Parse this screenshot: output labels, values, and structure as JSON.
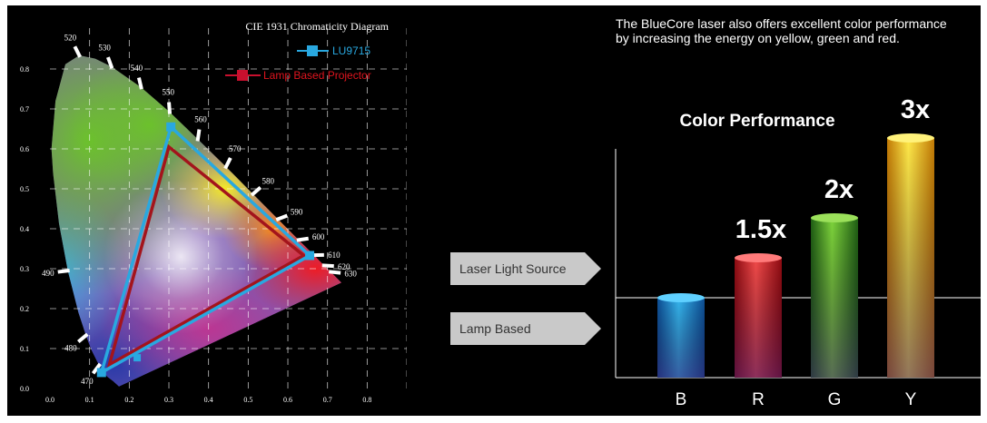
{
  "chart_data": [
    {
      "type": "scatter",
      "title": "CIE 1931 Chromaticity Diagram",
      "xlim": [
        0.0,
        0.9
      ],
      "ylim": [
        0.0,
        0.85
      ],
      "x_ticks": [
        "0.0",
        "0.1",
        "0.2",
        "0.3",
        "0.4",
        "0.5",
        "0.6",
        "0.7",
        "0.8"
      ],
      "y_ticks": [
        "0.0",
        "0.1",
        "0.2",
        "0.3",
        "0.4",
        "0.5",
        "0.6",
        "0.7",
        "0.8"
      ],
      "grid": true,
      "legend_position": "top-right",
      "spectral_locus": [
        {
          "wl": "470",
          "x": 0.124,
          "y": 0.058
        },
        {
          "wl": "480",
          "x": 0.091,
          "y": 0.133
        },
        {
          "wl": "490",
          "x": 0.045,
          "y": 0.295
        },
        {
          "wl": "520",
          "x": 0.074,
          "y": 0.834
        },
        {
          "wl": "530",
          "x": 0.155,
          "y": 0.806
        },
        {
          "wl": "540",
          "x": 0.23,
          "y": 0.754
        },
        {
          "wl": "550",
          "x": 0.302,
          "y": 0.692
        },
        {
          "wl": "560",
          "x": 0.373,
          "y": 0.624
        },
        {
          "wl": "570",
          "x": 0.444,
          "y": 0.555
        },
        {
          "wl": "580",
          "x": 0.512,
          "y": 0.487
        },
        {
          "wl": "590",
          "x": 0.575,
          "y": 0.424
        },
        {
          "wl": "600",
          "x": 0.627,
          "y": 0.372
        },
        {
          "wl": "610",
          "x": 0.666,
          "y": 0.334
        },
        {
          "wl": "620",
          "x": 0.691,
          "y": 0.308
        },
        {
          "wl": "630",
          "x": 0.708,
          "y": 0.292
        }
      ],
      "series": [
        {
          "name": "LU9715",
          "color": "#29a8e0",
          "points": [
            {
              "x": 0.305,
              "y": 0.655
            },
            {
              "x": 0.655,
              "y": 0.333
            },
            {
              "x": 0.13,
              "y": 0.04
            }
          ]
        },
        {
          "name": "Lamp Based Projector",
          "color": "#c8102e",
          "points": [
            {
              "x": 0.3,
              "y": 0.605
            },
            {
              "x": 0.64,
              "y": 0.333
            },
            {
              "x": 0.15,
              "y": 0.06
            }
          ]
        }
      ]
    },
    {
      "type": "bar",
      "title": "Color Performance",
      "categories": [
        "B",
        "R",
        "G",
        "Y"
      ],
      "values": [
        1,
        1.5,
        2,
        3
      ],
      "value_labels": [
        "",
        "1.5x",
        "2x",
        "3x"
      ],
      "colors": [
        "#1b8fd6",
        "#d81f2a",
        "#4aa02c",
        "#f0b413"
      ],
      "baseline_value": 1
    }
  ],
  "text": {
    "intro": "The BlueCore laser also offers excellent color performance by increasing the energy on yellow, green and red.",
    "labels": [
      "Laser Light Source",
      "Lamp Based"
    ]
  }
}
